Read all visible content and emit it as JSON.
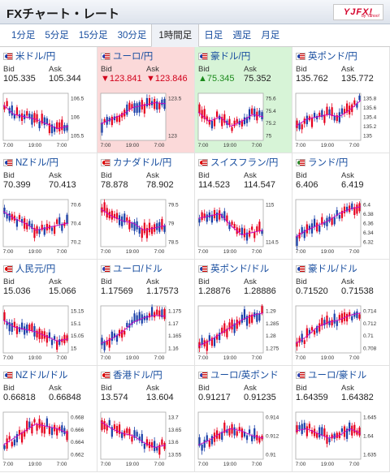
{
  "header": {
    "title": "FXチャート・レート",
    "logo_text": "YJFX!",
    "logo_sub": "by Yahoo!"
  },
  "tabs": [
    "1分足",
    "5分足",
    "15分足",
    "30分足",
    "1時間足",
    "日足",
    "週足",
    "月足"
  ],
  "active_tab": 4,
  "labels": {
    "bid": "Bid",
    "ask": "Ask"
  },
  "colors": {
    "up": "#e6001e",
    "down": "#1a3fa8",
    "ma": "#c800c8",
    "link": "#1a4fa0",
    "drop_bg": "#fbd9d9",
    "rise_bg": "#d7f4d7"
  },
  "pairs": [
    {
      "name": "米ドル/円",
      "bid": "105.335",
      "ask": "105.344",
      "state": "",
      "flag": "us-jp",
      "ticks": [
        "106.5",
        "106",
        "105.5"
      ],
      "xticks": [
        "7:00",
        "19:00",
        "7:00"
      ],
      "trend": [
        0.75,
        0.55,
        0.5,
        0.45,
        0.35,
        0.25,
        0.3
      ]
    },
    {
      "name": "ユーロ/円",
      "bid": "▼123.841",
      "ask": "▼123.846",
      "state": "down",
      "flag": "eu-jp",
      "ticks": [
        "123.5",
        "123"
      ],
      "xticks": [
        "7:00",
        "19:00",
        "7:00"
      ],
      "trend": [
        0.35,
        0.45,
        0.55,
        0.7,
        0.75,
        0.8,
        0.78
      ]
    },
    {
      "name": "豪ドル/円",
      "bid": "▲75.345",
      "ask": "75.352",
      "state": "up",
      "flag": "au-jp",
      "ticks": [
        "75.6",
        "75.4",
        "75.2",
        "75"
      ],
      "xticks": [
        "7:00",
        "19:00",
        "7:00"
      ],
      "trend": [
        0.6,
        0.4,
        0.5,
        0.3,
        0.4,
        0.55,
        0.5
      ]
    },
    {
      "name": "英ポンド/円",
      "bid": "135.762",
      "ask": "135.772",
      "state": "",
      "flag": "gb-jp",
      "ticks": [
        "135.8",
        "135.6",
        "135.4",
        "135.2",
        "135"
      ],
      "xticks": [
        "7:00",
        "19:00",
        "7:00"
      ],
      "trend": [
        0.3,
        0.45,
        0.5,
        0.55,
        0.5,
        0.65,
        0.85
      ]
    },
    {
      "name": "NZドル/円",
      "bid": "70.399",
      "ask": "70.413",
      "state": "",
      "flag": "nz-jp",
      "ticks": [
        "70.6",
        "70.4",
        "70.2"
      ],
      "xticks": [
        "7:00",
        "19:00",
        "7:00"
      ],
      "trend": [
        0.75,
        0.6,
        0.5,
        0.35,
        0.4,
        0.45,
        0.5
      ]
    },
    {
      "name": "カナダドル/円",
      "bid": "78.878",
      "ask": "78.902",
      "state": "",
      "flag": "ca-jp",
      "ticks": [
        "79.5",
        "79",
        "78.5"
      ],
      "xticks": [
        "7:00",
        "19:00",
        "7:00"
      ],
      "trend": [
        0.8,
        0.65,
        0.55,
        0.5,
        0.35,
        0.4,
        0.45
      ]
    },
    {
      "name": "スイスフラン/円",
      "bid": "114.523",
      "ask": "114.547",
      "state": "",
      "flag": "ch-jp",
      "ticks": [
        "115",
        "114.5"
      ],
      "xticks": [
        "7:00",
        "19:00",
        "7:00"
      ],
      "trend": [
        0.6,
        0.65,
        0.7,
        0.45,
        0.25,
        0.3,
        0.35
      ]
    },
    {
      "name": "ランド/円",
      "bid": "6.406",
      "ask": "6.419",
      "state": "",
      "flag": "za-jp",
      "ticks": [
        "6.4",
        "6.38",
        "6.36",
        "6.34",
        "6.32"
      ],
      "xticks": [
        "7:00",
        "19:00",
        "7:00"
      ],
      "trend": [
        0.2,
        0.35,
        0.45,
        0.55,
        0.7,
        0.8,
        0.85
      ]
    },
    {
      "name": "人民元/円",
      "bid": "15.036",
      "ask": "15.066",
      "state": "",
      "flag": "cn-jp",
      "ticks": [
        "15.15",
        "15.1",
        "15.05",
        "15"
      ],
      "xticks": [
        "7:00",
        "19:00",
        "7:00"
      ],
      "trend": [
        0.7,
        0.55,
        0.5,
        0.45,
        0.35,
        0.25,
        0.3
      ]
    },
    {
      "name": "ユーロ/ドル",
      "bid": "1.17569",
      "ask": "1.17573",
      "state": "",
      "flag": "eu-us",
      "ticks": [
        "1.175",
        "1.17",
        "1.165",
        "1.16"
      ],
      "xticks": [
        "7:00",
        "19:00",
        "7:00"
      ],
      "trend": [
        0.2,
        0.3,
        0.45,
        0.65,
        0.75,
        0.8,
        0.78
      ]
    },
    {
      "name": "英ポンド/ドル",
      "bid": "1.28876",
      "ask": "1.28886",
      "state": "",
      "flag": "gb-us",
      "ticks": [
        "1.29",
        "1.285",
        "1.28",
        "1.275"
      ],
      "xticks": [
        "7:00",
        "19:00",
        "7:00"
      ],
      "trend": [
        0.15,
        0.25,
        0.4,
        0.55,
        0.7,
        0.8,
        0.85
      ]
    },
    {
      "name": "豪ドル/ドル",
      "bid": "0.71520",
      "ask": "0.71538",
      "state": "",
      "flag": "au-us",
      "ticks": [
        "0.714",
        "0.712",
        "0.71",
        "0.708"
      ],
      "xticks": [
        "7:00",
        "19:00",
        "7:00"
      ],
      "trend": [
        0.2,
        0.35,
        0.55,
        0.65,
        0.7,
        0.8,
        0.85
      ]
    },
    {
      "name": "NZドル/ドル",
      "bid": "0.66818",
      "ask": "0.66848",
      "state": "",
      "flag": "nz-us",
      "ticks": [
        "0.668",
        "0.666",
        "0.664",
        "0.662"
      ],
      "xticks": [
        "7:00",
        "19:00",
        "7:00"
      ],
      "trend": [
        0.3,
        0.45,
        0.6,
        0.75,
        0.7,
        0.65,
        0.55
      ]
    },
    {
      "name": "香港ドル/円",
      "bid": "13.574",
      "ask": "13.604",
      "state": "",
      "flag": "hk-jp",
      "ticks": [
        "13.7",
        "13.65",
        "13.6",
        "13.55"
      ],
      "xticks": [
        "7:00",
        "19:00",
        "7:00"
      ],
      "trend": [
        0.8,
        0.65,
        0.55,
        0.5,
        0.35,
        0.25,
        0.3
      ]
    },
    {
      "name": "ユーロ/英ポンド",
      "bid": "0.91217",
      "ask": "0.91235",
      "state": "",
      "flag": "eu-gb",
      "ticks": [
        "0.914",
        "0.912",
        "0.91"
      ],
      "xticks": [
        "7:00",
        "19:00",
        "7:00"
      ],
      "trend": [
        0.3,
        0.4,
        0.55,
        0.65,
        0.6,
        0.5,
        0.45
      ]
    },
    {
      "name": "ユーロ/豪ドル",
      "bid": "1.64359",
      "ask": "1.64382",
      "state": "",
      "flag": "eu-au",
      "ticks": [
        "1.645",
        "1.64",
        "1.635"
      ],
      "xticks": [
        "7:00",
        "19:00",
        "7:00"
      ],
      "trend": [
        0.6,
        0.65,
        0.55,
        0.45,
        0.5,
        0.65,
        0.55
      ]
    }
  ]
}
